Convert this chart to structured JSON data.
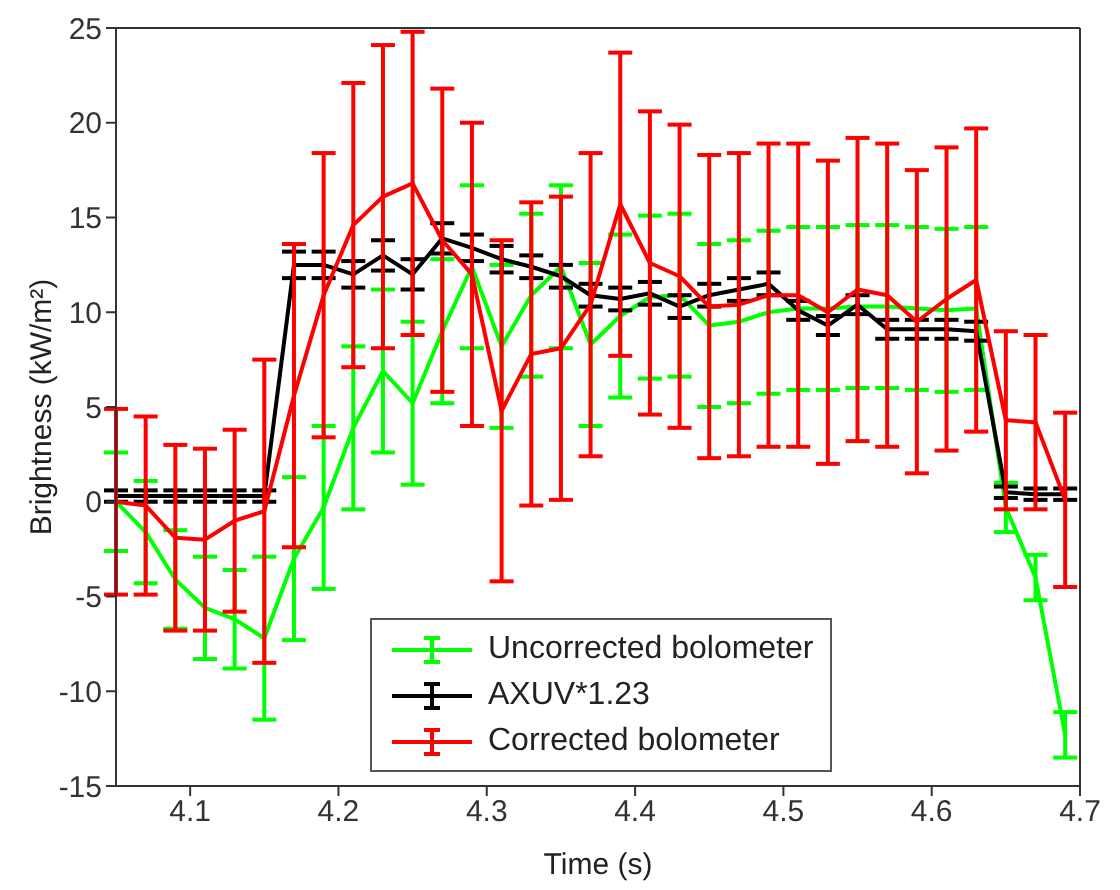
{
  "chart_data": {
    "type": "line",
    "xlabel": "Time (s)",
    "ylabel": "Brightness (kW/m²)",
    "x": [
      4.05,
      4.07,
      4.09,
      4.11,
      4.13,
      4.15,
      4.17,
      4.19,
      4.21,
      4.23,
      4.25,
      4.27,
      4.29,
      4.31,
      4.33,
      4.35,
      4.37,
      4.39,
      4.41,
      4.43,
      4.45,
      4.47,
      4.49,
      4.51,
      4.53,
      4.55,
      4.57,
      4.59,
      4.61,
      4.63,
      4.65,
      4.67,
      4.69
    ],
    "series": [
      {
        "name": "Uncorrected bolometer",
        "color": "#00ff00",
        "values": [
          0,
          -1.6,
          -4.1,
          -5.6,
          -6.2,
          -7.2,
          -3,
          -0.3,
          3.9,
          6.9,
          5.2,
          9,
          12.4,
          8.2,
          10.9,
          12.4,
          8.3,
          9.8,
          10.8,
          10.9,
          9.3,
          9.5,
          10,
          10.2,
          10.2,
          10.3,
          10.3,
          10.2,
          10.1,
          10.2,
          -0.3,
          -4,
          -12.3
        ],
        "errors": [
          2.6,
          2.7,
          2.6,
          2.7,
          2.6,
          4.3,
          4.3,
          4.3,
          4.3,
          4.3,
          4.3,
          3.8,
          4.3,
          4.3,
          4.3,
          4.3,
          4.3,
          4.3,
          4.3,
          4.3,
          4.3,
          4.3,
          4.3,
          4.3,
          4.3,
          4.3,
          4.3,
          4.3,
          4.3,
          4.3,
          1.3,
          1.2,
          1.2
        ]
      },
      {
        "name": "AXUV*1.23",
        "color": "#000000",
        "values": [
          0.3,
          0.3,
          0.3,
          0.3,
          0.3,
          0.3,
          12.5,
          12.5,
          12,
          13,
          12,
          13.9,
          13.4,
          12.8,
          12.4,
          11.9,
          10.9,
          10.7,
          11,
          10.3,
          10.9,
          11.2,
          11.5,
          10.1,
          9.3,
          10.4,
          9.1,
          9.1,
          9.1,
          9,
          0.5,
          0.4,
          0.4
        ],
        "errors": [
          0.3,
          0.3,
          0.3,
          0.3,
          0.3,
          0.3,
          0.7,
          0.7,
          0.7,
          0.8,
          0.8,
          0.8,
          0.7,
          0.7,
          0.6,
          0.6,
          0.6,
          0.6,
          0.6,
          0.6,
          0.6,
          0.6,
          0.6,
          0.5,
          0.5,
          0.5,
          0.5,
          0.5,
          0.5,
          0.5,
          0.3,
          0.3,
          0.3
        ]
      },
      {
        "name": "Corrected bolometer",
        "color": "#ff0000",
        "values": [
          0,
          -0.2,
          -1.9,
          -2,
          -1,
          -0.5,
          5.6,
          10.9,
          14.6,
          16.1,
          16.8,
          13.8,
          12,
          4.8,
          7.8,
          8.1,
          10.4,
          15.7,
          12.6,
          11.9,
          10.3,
          10.4,
          10.9,
          10.9,
          10,
          11.2,
          10.9,
          9.5,
          10.7,
          11.7,
          4.3,
          4.2,
          0.1
        ],
        "errors": [
          4.9,
          4.7,
          4.9,
          4.8,
          4.8,
          8,
          8,
          7.5,
          7.5,
          8,
          8,
          8,
          8,
          9,
          8,
          8,
          8,
          8,
          8,
          8,
          8,
          8,
          8,
          8,
          8,
          8,
          8,
          8,
          8,
          8,
          4.7,
          4.6,
          4.6
        ]
      }
    ],
    "xlim": [
      4.05,
      4.7
    ],
    "xticks": [
      4.1,
      4.2,
      4.3,
      4.4,
      4.5,
      4.6,
      4.7
    ],
    "ylim": [
      -15,
      25
    ],
    "yticks": [
      -15,
      -10,
      -5,
      0,
      5,
      10,
      15,
      20,
      25
    ],
    "legend": "bottom",
    "marker": "none",
    "line_style": "solid",
    "grid": false
  }
}
